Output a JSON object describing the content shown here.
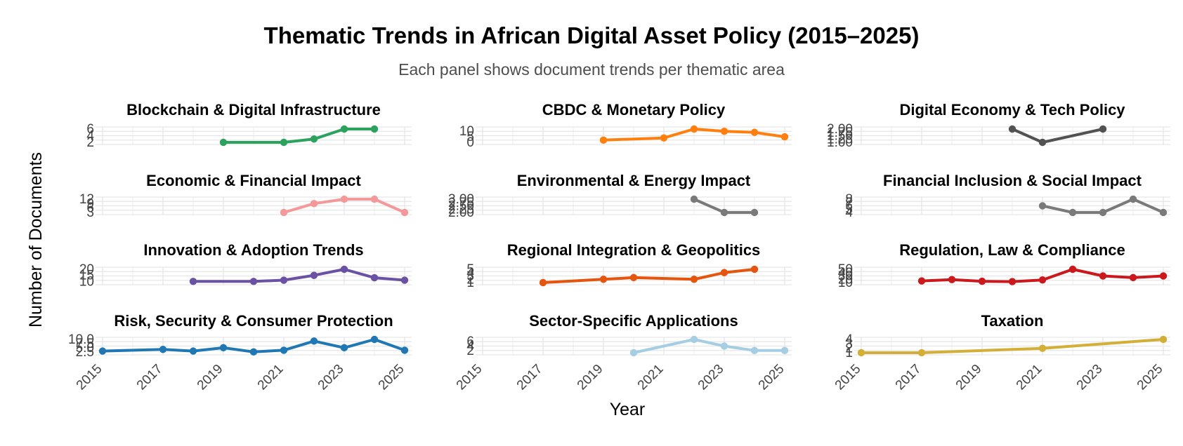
{
  "chart_data": {
    "type": "line",
    "title": "Thematic Trends in African Digital Asset Policy (2015–2025)",
    "subtitle": "Each panel shows document trends per thematic area",
    "xlabel": "Year",
    "ylabel": "Number of Documents",
    "xlim": [
      2015,
      2025
    ],
    "x_ticks": [
      "2015",
      "2017",
      "2019",
      "2021",
      "2023",
      "2025"
    ],
    "grid": true,
    "facets": [
      {
        "title": "Blockchain & Digital Infrastructure",
        "color": "#2ca25f",
        "y_ticks": [
          "2",
          "4",
          "6"
        ],
        "ylim": [
          2,
          6
        ],
        "x": [
          2019,
          2021,
          2022,
          2023,
          2024
        ],
        "y": [
          2,
          2,
          3,
          6,
          6
        ]
      },
      {
        "title": "CBDC & Monetary Policy",
        "color": "#ff7f0e",
        "y_ticks": [
          "0",
          "5",
          "10"
        ],
        "ylim": [
          0,
          12
        ],
        "x": [
          2019,
          2021,
          2022,
          2023,
          2024,
          2025
        ],
        "y": [
          2,
          4,
          12,
          10,
          9,
          5
        ]
      },
      {
        "title": "Digital Economy & Tech Policy",
        "color": "#525252",
        "y_ticks": [
          "1.00",
          "1.25",
          "1.50",
          "1.75",
          "2.00"
        ],
        "ylim": [
          1,
          2
        ],
        "x": [
          2020,
          2021,
          2023
        ],
        "y": [
          2,
          1,
          2
        ]
      },
      {
        "title": "Economic & Financial Impact",
        "color": "#f4999a",
        "y_ticks": [
          "3",
          "6",
          "9",
          "12"
        ],
        "ylim": [
          3,
          12
        ],
        "x": [
          2021,
          2022,
          2023,
          2024,
          2025
        ],
        "y": [
          3,
          9,
          12,
          12,
          3
        ]
      },
      {
        "title": "Environmental & Energy Impact",
        "color": "#7a7a7a",
        "y_ticks": [
          "2.00",
          "2.25",
          "2.50",
          "2.75",
          "3.00"
        ],
        "ylim": [
          2,
          3
        ],
        "x": [
          2022,
          2023,
          2024
        ],
        "y": [
          3,
          2,
          2
        ]
      },
      {
        "title": "Financial Inclusion & Social Impact",
        "color": "#7a7a7a",
        "y_ticks": [
          "4",
          "5",
          "6",
          "7",
          "8"
        ],
        "ylim": [
          4,
          8
        ],
        "x": [
          2021,
          2022,
          2023,
          2024,
          2025
        ],
        "y": [
          6,
          4,
          4,
          8,
          4
        ]
      },
      {
        "title": "Innovation & Adoption Trends",
        "color": "#6a51a3",
        "y_ticks": [
          "10",
          "15",
          "20"
        ],
        "ylim": [
          9,
          20
        ],
        "x": [
          2018,
          2020,
          2021,
          2022,
          2023,
          2024,
          2025
        ],
        "y": [
          10,
          10,
          11,
          15,
          20,
          13,
          11
        ]
      },
      {
        "title": "Regional Integration & Geopolitics",
        "color": "#e6550d",
        "y_ticks": [
          "1",
          "2",
          "3",
          "4",
          "5"
        ],
        "ylim": [
          1,
          5
        ],
        "x": [
          2017,
          2019,
          2020,
          2022,
          2023,
          2024
        ],
        "y": [
          1,
          2,
          2.5,
          2,
          4,
          5
        ]
      },
      {
        "title": "Regulation, Law & Compliance",
        "color": "#cb181d",
        "y_ticks": [
          "10",
          "20",
          "30",
          "40",
          "50"
        ],
        "ylim": [
          10,
          50
        ],
        "x": [
          2017,
          2018,
          2019,
          2020,
          2021,
          2022,
          2023,
          2024,
          2025
        ],
        "y": [
          15,
          19,
          14,
          13,
          18,
          50,
          30,
          25,
          30
        ]
      },
      {
        "title": "Risk, Security & Consumer Protection",
        "color": "#1f78b4",
        "y_ticks": [
          "2.5",
          "5.0",
          "7.5",
          "10.0"
        ],
        "ylim": [
          2,
          10
        ],
        "x": [
          2015,
          2017,
          2018,
          2019,
          2020,
          2021,
          2022,
          2023,
          2024,
          2025
        ],
        "y": [
          3,
          4,
          3,
          5,
          2.5,
          3.5,
          9,
          5,
          10,
          3.5
        ]
      },
      {
        "title": "Sector-Specific Applications",
        "color": "#a6cee3",
        "y_ticks": [
          "2",
          "4",
          "6"
        ],
        "ylim": [
          1,
          7
        ],
        "x": [
          2020,
          2022,
          2023,
          2024,
          2025
        ],
        "y": [
          1,
          7,
          4,
          2,
          2
        ]
      },
      {
        "title": "Taxation",
        "color": "#d4af37",
        "y_ticks": [
          "1",
          "2",
          "3",
          "4"
        ],
        "ylim": [
          1,
          4
        ],
        "x": [
          2015,
          2017,
          2021,
          2025
        ],
        "y": [
          1,
          1,
          2,
          4
        ]
      }
    ]
  }
}
